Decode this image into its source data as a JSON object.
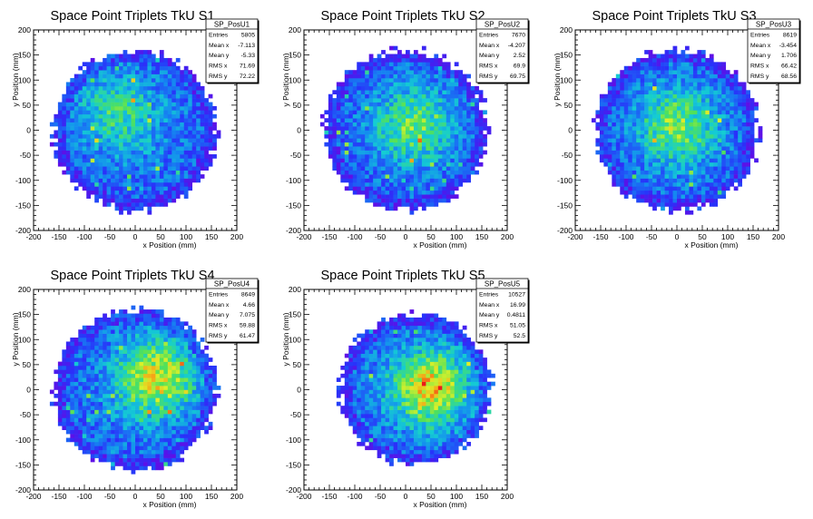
{
  "chart_data": [
    {
      "type": "heatmap",
      "title": "Space Point Triplets TkU S1",
      "xlabel": "x Position (mm)",
      "ylabel": "y Position (mm)",
      "xlim": [
        -200,
        200
      ],
      "ylim": [
        -200,
        200
      ],
      "xticks": [
        -200,
        -150,
        -100,
        -50,
        0,
        50,
        100,
        150,
        200
      ],
      "yticks": [
        -200,
        -150,
        -100,
        -50,
        0,
        50,
        100,
        150,
        200
      ],
      "stats": {
        "name": "SP_PosU1",
        "rows": [
          {
            "label": "Entries",
            "value": "5805"
          },
          {
            "label": "Mean x",
            "value": "-7.113"
          },
          {
            "label": "Mean y",
            "value": "-5.33"
          },
          {
            "label": "RMS x",
            "value": "71.69"
          },
          {
            "label": "RMS y",
            "value": "72.22"
          }
        ]
      },
      "distribution": {
        "radius_mm": 160,
        "center_mm": [
          0,
          0
        ],
        "peak_level": 0.45,
        "hotspot_mm": [
          -40,
          40
        ],
        "seed": 11
      }
    },
    {
      "type": "heatmap",
      "title": "Space Point Triplets TkU S2",
      "xlabel": "x Position (mm)",
      "ylabel": "y Position (mm)",
      "xlim": [
        -200,
        200
      ],
      "ylim": [
        -200,
        200
      ],
      "xticks": [
        -200,
        -150,
        -100,
        -50,
        0,
        50,
        100,
        150,
        200
      ],
      "yticks": [
        -200,
        -150,
        -100,
        -50,
        0,
        50,
        100,
        150,
        200
      ],
      "stats": {
        "name": "SP_PosU2",
        "rows": [
          {
            "label": "Entries",
            "value": "7670"
          },
          {
            "label": "Mean x",
            "value": "-4.207"
          },
          {
            "label": "Mean y",
            "value": "2.52"
          },
          {
            "label": "RMS x",
            "value": "69.9"
          },
          {
            "label": "RMS y",
            "value": "69.75"
          }
        ]
      },
      "distribution": {
        "radius_mm": 160,
        "center_mm": [
          0,
          0
        ],
        "peak_level": 0.55,
        "hotspot_mm": [
          20,
          10
        ],
        "seed": 23
      }
    },
    {
      "type": "heatmap",
      "title": "Space Point Triplets TkU S3",
      "xlabel": "x Position (mm)",
      "ylabel": "y Position (mm)",
      "xlim": [
        -200,
        200
      ],
      "ylim": [
        -200,
        200
      ],
      "xticks": [
        -200,
        -150,
        -100,
        -50,
        0,
        50,
        100,
        150,
        200
      ],
      "yticks": [
        -200,
        -150,
        -100,
        -50,
        0,
        50,
        100,
        150,
        200
      ],
      "stats": {
        "name": "SP_PosU3",
        "rows": [
          {
            "label": "Entries",
            "value": "8619"
          },
          {
            "label": "Mean x",
            "value": "-3.454"
          },
          {
            "label": "Mean y",
            "value": "1.706"
          },
          {
            "label": "RMS x",
            "value": "66.42"
          },
          {
            "label": "RMS y",
            "value": "68.56"
          }
        ]
      },
      "distribution": {
        "radius_mm": 160,
        "center_mm": [
          0,
          0
        ],
        "peak_level": 0.6,
        "hotspot_mm": [
          0,
          10
        ],
        "seed": 37
      }
    },
    {
      "type": "heatmap",
      "title": "Space Point Triplets TkU S4",
      "xlabel": "x Position (mm)",
      "ylabel": "y Position (mm)",
      "xlim": [
        -200,
        200
      ],
      "ylim": [
        -200,
        200
      ],
      "xticks": [
        -200,
        -150,
        -100,
        -50,
        0,
        50,
        100,
        150,
        200
      ],
      "yticks": [
        -200,
        -150,
        -100,
        -50,
        0,
        50,
        100,
        150,
        200
      ],
      "stats": {
        "name": "SP_PosU4",
        "rows": [
          {
            "label": "Entries",
            "value": "8649"
          },
          {
            "label": "Mean x",
            "value": "4.66"
          },
          {
            "label": "Mean y",
            "value": "7.075"
          },
          {
            "label": "RMS x",
            "value": "59.88"
          },
          {
            "label": "RMS y",
            "value": "61.47"
          }
        ]
      },
      "distribution": {
        "radius_mm": 160,
        "center_mm": [
          0,
          0
        ],
        "peak_level": 0.85,
        "hotspot_mm": [
          45,
          25
        ],
        "seed": 41
      }
    },
    {
      "type": "heatmap",
      "title": "Space Point Triplets TkU S5",
      "xlabel": "x Position (mm)",
      "ylabel": "y Position (mm)",
      "xlim": [
        -200,
        200
      ],
      "ylim": [
        -200,
        200
      ],
      "xticks": [
        -200,
        -150,
        -100,
        -50,
        0,
        50,
        100,
        150,
        200
      ],
      "yticks": [
        -200,
        -150,
        -100,
        -50,
        0,
        50,
        100,
        150,
        200
      ],
      "stats": {
        "name": "SP_PosU5",
        "rows": [
          {
            "label": "Entries",
            "value": "10527"
          },
          {
            "label": "Mean x",
            "value": "16.99"
          },
          {
            "label": "Mean y",
            "value": "0.4811"
          },
          {
            "label": "RMS x",
            "value": "51.05"
          },
          {
            "label": "RMS y",
            "value": "52.5"
          }
        ]
      },
      "distribution": {
        "radius_mm": 150,
        "center_mm": [
          20,
          0
        ],
        "peak_level": 0.9,
        "hotspot_mm": [
          50,
          5
        ],
        "seed": 53
      }
    }
  ]
}
